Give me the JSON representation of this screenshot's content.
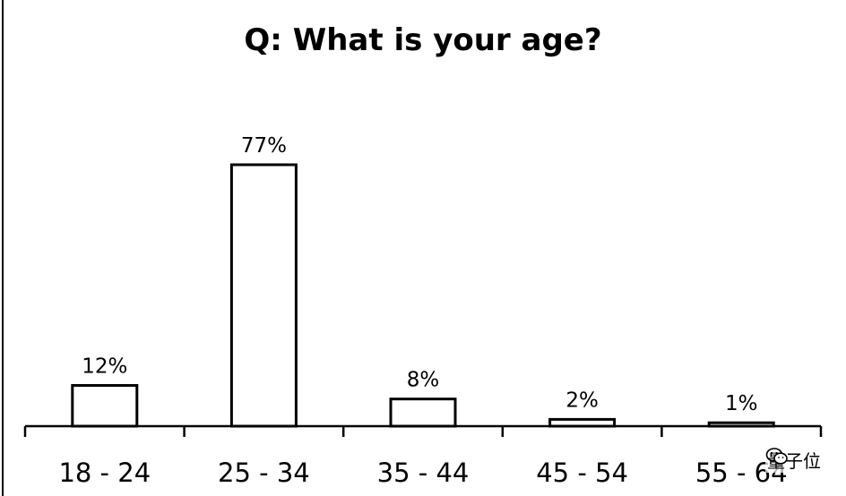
{
  "chart_data": {
    "type": "bar",
    "title": "Q: What is your age?",
    "categories": [
      "18 - 24",
      "25 - 34",
      "35 - 44",
      "45 - 54",
      "55 - 64"
    ],
    "values": [
      12,
      77,
      8,
      2,
      1
    ],
    "value_labels": [
      "12%",
      "77%",
      "8%",
      "2%",
      "1%"
    ],
    "ylim": [
      0,
      100
    ],
    "xlabel": "",
    "ylabel": "",
    "grid": false,
    "bar_fill": "#ffffff",
    "bar_stroke": "#000000"
  },
  "watermark": {
    "text": "量子位",
    "icon": "wechat-icon"
  }
}
